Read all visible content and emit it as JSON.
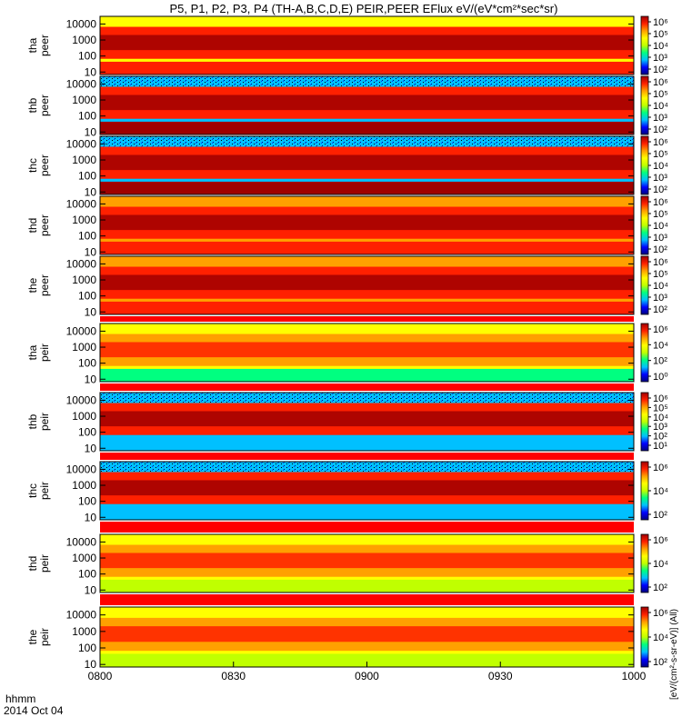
{
  "title": "P5, P1, P2, P3, P4 (TH-A,B,C,D,E) PEIR,PEER EFlux eV/(eV*cm²*sec*sr)",
  "x_axis": {
    "labels": [
      "0800",
      "0830",
      "0900",
      "0930",
      "1000"
    ],
    "units_label": "hhmm",
    "date_label": "2014 Oct 04"
  },
  "colorbar_unit": "[eV/(cm²-s-sr-eV)] (All)",
  "colors": {
    "scale": [
      "#000080",
      "#0000ff",
      "#00c0ff",
      "#00ff80",
      "#c0ff00",
      "#ffff00",
      "#ffa000",
      "#ff2000",
      "#a00000"
    ],
    "trace": "#000000",
    "gap": "#ff0000"
  },
  "chart_data": [
    {
      "type": "heatmap",
      "probe": "tha",
      "species": "peer",
      "ylabel": [
        "tha",
        "peer"
      ],
      "y_ticks": [
        "10",
        "100",
        "1000",
        "10000"
      ],
      "y_scale": "log",
      "ylim_eV": [
        7,
        30000
      ],
      "cb_ticks": [
        "10⁶",
        "10⁵",
        "10⁴",
        "10³",
        "10²"
      ],
      "x_range_hhmm": [
        "0800",
        "1000"
      ]
    },
    {
      "type": "heatmap",
      "probe": "thb",
      "species": "peer",
      "ylabel": [
        "thb",
        "peer"
      ],
      "y_ticks": [
        "10",
        "100",
        "1000",
        "10000"
      ],
      "y_scale": "log",
      "ylim_eV": [
        7,
        30000
      ],
      "cb_ticks": [
        "10⁶",
        "10⁵",
        "10⁴",
        "10³",
        "10²"
      ],
      "x_range_hhmm": [
        "0800",
        "1000"
      ]
    },
    {
      "type": "heatmap",
      "probe": "thc",
      "species": "peer",
      "ylabel": [
        "thc",
        "peer"
      ],
      "y_ticks": [
        "10",
        "100",
        "1000",
        "10000"
      ],
      "y_scale": "log",
      "ylim_eV": [
        7,
        30000
      ],
      "cb_ticks": [
        "10⁶",
        "10⁵",
        "10⁴",
        "10³",
        "10²"
      ],
      "x_range_hhmm": [
        "0800",
        "1000"
      ]
    },
    {
      "type": "heatmap",
      "probe": "thd",
      "species": "peer",
      "ylabel": [
        "thd",
        "peer"
      ],
      "y_ticks": [
        "10",
        "100",
        "1000",
        "10000"
      ],
      "y_scale": "log",
      "ylim_eV": [
        7,
        30000
      ],
      "cb_ticks": [
        "10⁶",
        "10⁵",
        "10⁴",
        "10³",
        "10²"
      ],
      "x_range_hhmm": [
        "0800",
        "1000"
      ]
    },
    {
      "type": "heatmap",
      "probe": "the",
      "species": "peer",
      "ylabel": [
        "the",
        "peer"
      ],
      "y_ticks": [
        "10",
        "100",
        "1000",
        "10000"
      ],
      "y_scale": "log",
      "ylim_eV": [
        7,
        30000
      ],
      "cb_ticks": [
        "10⁶",
        "10⁵",
        "10⁴",
        "10³",
        "10²"
      ],
      "x_range_hhmm": [
        "0800",
        "1000"
      ]
    },
    {
      "type": "heatmap",
      "probe": "tha",
      "species": "peir",
      "ylabel": [
        "tha",
        "peir"
      ],
      "y_ticks": [
        "10",
        "100",
        "1000",
        "10000"
      ],
      "y_scale": "log",
      "ylim_eV": [
        7,
        30000
      ],
      "cb_ticks": [
        "10⁶",
        "10⁴",
        "10²",
        "10⁰"
      ],
      "x_range_hhmm": [
        "0800",
        "1000"
      ]
    },
    {
      "type": "heatmap",
      "probe": "thb",
      "species": "peir",
      "ylabel": [
        "thb",
        "peir"
      ],
      "y_ticks": [
        "10",
        "100",
        "1000",
        "10000"
      ],
      "y_scale": "log",
      "ylim_eV": [
        7,
        30000
      ],
      "cb_ticks": [
        "10⁶",
        "10⁵",
        "10⁴",
        "10³",
        "10²",
        "10¹"
      ],
      "x_range_hhmm": [
        "0800",
        "1000"
      ]
    },
    {
      "type": "heatmap",
      "probe": "thc",
      "species": "peir",
      "ylabel": [
        "thc",
        "peir"
      ],
      "y_ticks": [
        "10",
        "100",
        "1000",
        "10000"
      ],
      "y_scale": "log",
      "ylim_eV": [
        7,
        30000
      ],
      "cb_ticks": [
        "10⁶",
        "10⁴",
        "10²"
      ],
      "x_range_hhmm": [
        "0800",
        "1000"
      ]
    },
    {
      "type": "heatmap",
      "probe": "thd",
      "species": "peir",
      "ylabel": [
        "thd",
        "peir"
      ],
      "y_ticks": [
        "10",
        "100",
        "1000",
        "10000"
      ],
      "y_scale": "log",
      "ylim_eV": [
        7,
        30000
      ],
      "cb_ticks": [
        "10⁶",
        "10⁴",
        "10²"
      ],
      "x_range_hhmm": [
        "0800",
        "1000"
      ]
    },
    {
      "type": "heatmap",
      "probe": "the",
      "species": "peir",
      "ylabel": [
        "the",
        "peir"
      ],
      "y_ticks": [
        "10",
        "100",
        "1000",
        "10000"
      ],
      "y_scale": "log",
      "ylim_eV": [
        7,
        30000
      ],
      "cb_ticks": [
        "10⁶",
        "10⁴",
        "10²"
      ],
      "x_range_hhmm": [
        "0800",
        "1000"
      ]
    }
  ]
}
